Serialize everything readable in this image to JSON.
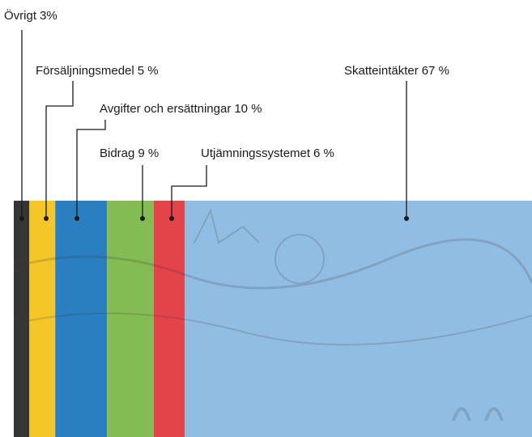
{
  "chart_data": {
    "type": "bar",
    "orientation": "horizontal",
    "stacked": true,
    "series": [
      {
        "name": "Övrigt",
        "color": "#2b2b2b",
        "values": [
          3
        ],
        "value_labels": [
          "3%"
        ]
      },
      {
        "name": "Försäljningsmedel",
        "color": "#f4c31c",
        "values": [
          5
        ],
        "value_labels": [
          "5 %"
        ]
      },
      {
        "name": "Avgifter och ersättningar",
        "color": "#1f78be",
        "values": [
          10
        ],
        "value_labels": [
          "10 %"
        ]
      },
      {
        "name": "Bidrag",
        "color": "#7cb84a",
        "values": [
          9
        ],
        "value_labels": [
          "9 %"
        ]
      },
      {
        "name": "Utjämningssystemet",
        "color": "#e03a40",
        "values": [
          6
        ],
        "value_labels": [
          "6 %"
        ]
      },
      {
        "name": "Skatteintäkter",
        "color": "#8cb9e2",
        "values": [
          67
        ],
        "value_labels": [
          "67 %"
        ]
      }
    ]
  }
}
